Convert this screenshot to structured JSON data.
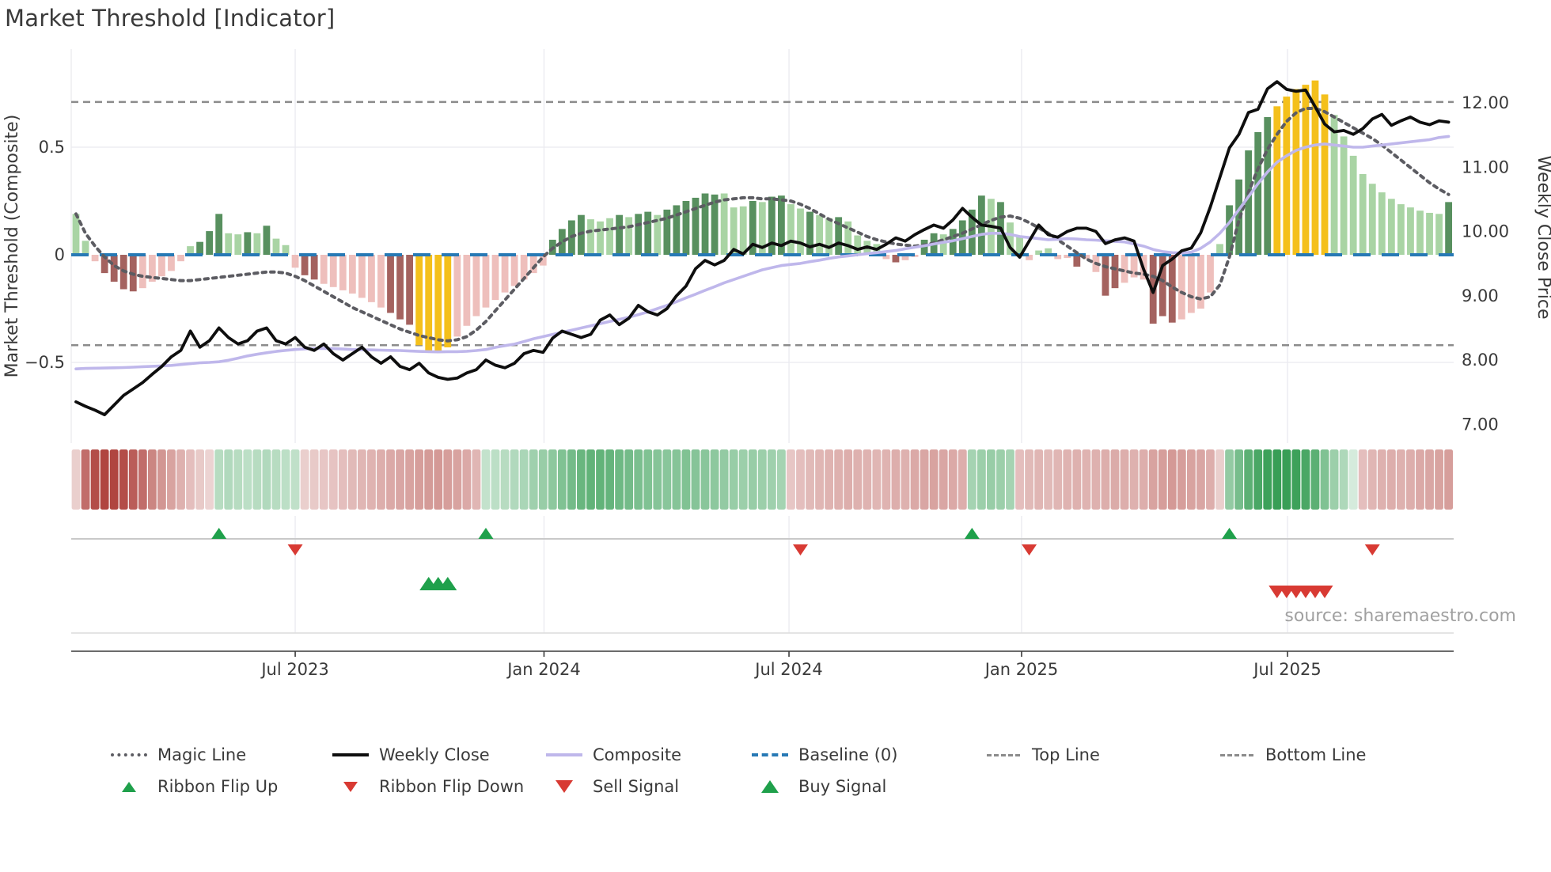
{
  "header": {
    "title": "Market Threshold [Indicator]"
  },
  "footer": {
    "source": "source: sharemaestro.com"
  },
  "axes": {
    "left": {
      "label": "Market Threshold (Composite)"
    },
    "right": {
      "label": "Weekly Close Price"
    }
  },
  "legend": {
    "magic": "Magic Line",
    "weekly_close": "Weekly Close",
    "composite": "Composite",
    "baseline": "Baseline (0)",
    "top": "Top Line",
    "bottom": "Bottom Line",
    "flip_up": "Ribbon Flip Up",
    "flip_down": "Ribbon Flip Down",
    "sell": "Sell Signal",
    "buy": "Buy Signal"
  },
  "colors": {
    "bar_light_green": "#a9d4a4",
    "bar_dark_green": "#58905f",
    "bar_pink": "#eebfbc",
    "bar_dark_red": "#a4625f",
    "bar_yellow": "#f4c01b",
    "magic_line": "#5c5c62",
    "weekly_close": "#0e0e0e",
    "composite_line": "#bfb7eb",
    "baseline": "#2779b5",
    "guide_dashed": "#8b8b8b",
    "grid": "#eaeaef",
    "signal_green": "#1fa04b",
    "signal_red": "#d83a33",
    "ribbon_red_base": "#b04540",
    "ribbon_green_base": "#2f9a4e",
    "axis_text": "#3a3a3a"
  },
  "chart_data": {
    "type": "combo",
    "title": "Market Threshold [Indicator]",
    "n_weeks": 145,
    "x_ticks": [
      {
        "label": "Jul 2023",
        "week": 23
      },
      {
        "label": "Jan 2024",
        "week": 49.1
      },
      {
        "label": "Jul 2024",
        "week": 74.8
      },
      {
        "label": "Jan 2025",
        "week": 99.2
      },
      {
        "label": "Jul 2025",
        "week": 127.1
      }
    ],
    "left_axis": {
      "label": "Market Threshold (Composite)",
      "ticks": [
        {
          "v": 0.5,
          "t": "0.5"
        },
        {
          "v": 0,
          "t": "0"
        },
        {
          "v": -0.5,
          "t": "−0.5"
        }
      ],
      "range": [
        -0.95,
        0.96
      ]
    },
    "right_axis": {
      "label": "Weekly Close Price",
      "ticks": [
        {
          "v": 12,
          "t": "12.00"
        },
        {
          "v": 11,
          "t": "11.00"
        },
        {
          "v": 10,
          "t": "10.00"
        },
        {
          "v": 9,
          "t": "9.00"
        },
        {
          "v": 8,
          "t": "8.00"
        },
        {
          "v": 7,
          "t": "7.00"
        }
      ],
      "range": [
        6.7,
        12.85
      ]
    },
    "reference_lines": {
      "baseline": 0,
      "top_line": 0.71,
      "bottom_line": -0.42
    },
    "bar_color_key": {
      "lg": "light-green",
      "dg": "dark-green",
      "pk": "pink",
      "dr": "dark-red",
      "ye": "yellow-extreme"
    },
    "series": {
      "threshold_bars": {
        "axis": "left",
        "values": [
          0.19,
          0.065,
          -0.03,
          -0.085,
          -0.125,
          -0.16,
          -0.17,
          -0.155,
          -0.125,
          -0.1,
          -0.075,
          -0.03,
          0.04,
          0.06,
          0.11,
          0.19,
          0.1,
          0.095,
          0.105,
          0.1,
          0.135,
          0.075,
          0.045,
          -0.06,
          -0.095,
          -0.115,
          -0.135,
          -0.15,
          -0.165,
          -0.18,
          -0.2,
          -0.22,
          -0.245,
          -0.27,
          -0.3,
          -0.325,
          -0.42,
          -0.445,
          -0.455,
          -0.43,
          -0.38,
          -0.33,
          -0.285,
          -0.245,
          -0.21,
          -0.175,
          -0.145,
          -0.115,
          -0.085,
          -0.05,
          0.07,
          0.12,
          0.16,
          0.185,
          0.165,
          0.155,
          0.17,
          0.185,
          0.175,
          0.19,
          0.2,
          0.185,
          0.21,
          0.23,
          0.25,
          0.265,
          0.285,
          0.28,
          0.285,
          0.22,
          0.225,
          0.25,
          0.245,
          0.27,
          0.275,
          0.235,
          0.215,
          0.2,
          0.185,
          0.17,
          0.175,
          0.155,
          0.09,
          0.065,
          0.05,
          -0.02,
          -0.035,
          -0.025,
          -0.01,
          0.07,
          0.1,
          0.095,
          0.12,
          0.16,
          0.21,
          0.275,
          0.26,
          0.245,
          0.15,
          0.085,
          -0.025,
          0.02,
          0.03,
          -0.02,
          -0.015,
          -0.055,
          -0.02,
          -0.08,
          -0.19,
          -0.155,
          -0.13,
          -0.105,
          -0.115,
          -0.32,
          -0.285,
          -0.315,
          -0.3,
          -0.27,
          -0.25,
          -0.175,
          0.05,
          0.23,
          0.35,
          0.485,
          0.57,
          0.64,
          0.69,
          0.735,
          0.77,
          0.79,
          0.81,
          0.745,
          0.65,
          0.55,
          0.46,
          0.375,
          0.33,
          0.29,
          0.26,
          0.235,
          0.22,
          0.205,
          0.195,
          0.19,
          0.245
        ],
        "colors": [
          "lg",
          "lg",
          "pk",
          "dr",
          "dr",
          "dr",
          "dr",
          "pk",
          "pk",
          "pk",
          "pk",
          "pk",
          "lg",
          "dg",
          "dg",
          "dg",
          "lg",
          "lg",
          "dg",
          "lg",
          "dg",
          "lg",
          "lg",
          "pk",
          "dr",
          "dr",
          "pk",
          "pk",
          "pk",
          "pk",
          "pk",
          "pk",
          "pk",
          "dr",
          "dr",
          "dr",
          "ye",
          "ye",
          "ye",
          "ye",
          "pk",
          "pk",
          "pk",
          "pk",
          "pk",
          "pk",
          "pk",
          "pk",
          "pk",
          "pk",
          "dg",
          "dg",
          "dg",
          "dg",
          "lg",
          "lg",
          "lg",
          "dg",
          "lg",
          "dg",
          "dg",
          "lg",
          "dg",
          "dg",
          "dg",
          "dg",
          "dg",
          "dg",
          "lg",
          "lg",
          "lg",
          "dg",
          "lg",
          "dg",
          "dg",
          "lg",
          "lg",
          "dg",
          "lg",
          "lg",
          "dg",
          "lg",
          "lg",
          "lg",
          "lg",
          "pk",
          "dr",
          "pk",
          "pk",
          "dg",
          "dg",
          "lg",
          "dg",
          "dg",
          "dg",
          "dg",
          "lg",
          "dg",
          "lg",
          "lg",
          "pk",
          "lg",
          "lg",
          "pk",
          "pk",
          "dr",
          "pk",
          "pk",
          "dr",
          "dr",
          "pk",
          "pk",
          "pk",
          "dr",
          "dr",
          "dr",
          "pk",
          "pk",
          "pk",
          "pk",
          "lg",
          "dg",
          "dg",
          "dg",
          "dg",
          "dg",
          "ye",
          "ye",
          "ye",
          "ye",
          "ye",
          "ye",
          "lg",
          "lg",
          "lg",
          "lg",
          "lg",
          "lg",
          "lg",
          "lg",
          "lg",
          "lg",
          "lg",
          "lg",
          "dg"
        ]
      },
      "magic_line": {
        "axis": "left",
        "values": [
          0.19,
          0.1,
          0.04,
          -0.01,
          -0.05,
          -0.075,
          -0.09,
          -0.1,
          -0.105,
          -0.11,
          -0.115,
          -0.12,
          -0.12,
          -0.115,
          -0.11,
          -0.105,
          -0.1,
          -0.095,
          -0.09,
          -0.085,
          -0.08,
          -0.08,
          -0.085,
          -0.1,
          -0.12,
          -0.145,
          -0.17,
          -0.195,
          -0.22,
          -0.245,
          -0.265,
          -0.285,
          -0.305,
          -0.325,
          -0.345,
          -0.36,
          -0.375,
          -0.385,
          -0.395,
          -0.4,
          -0.395,
          -0.38,
          -0.35,
          -0.31,
          -0.26,
          -0.21,
          -0.16,
          -0.11,
          -0.06,
          -0.01,
          0.03,
          0.06,
          0.085,
          0.1,
          0.11,
          0.115,
          0.12,
          0.125,
          0.13,
          0.14,
          0.15,
          0.16,
          0.17,
          0.185,
          0.2,
          0.215,
          0.23,
          0.245,
          0.255,
          0.26,
          0.265,
          0.265,
          0.26,
          0.26,
          0.255,
          0.25,
          0.235,
          0.215,
          0.19,
          0.165,
          0.145,
          0.125,
          0.105,
          0.085,
          0.07,
          0.06,
          0.05,
          0.045,
          0.04,
          0.045,
          0.055,
          0.07,
          0.085,
          0.1,
          0.12,
          0.14,
          0.16,
          0.175,
          0.18,
          0.17,
          0.15,
          0.125,
          0.1,
          0.07,
          0.04,
          0.01,
          -0.02,
          -0.04,
          -0.055,
          -0.065,
          -0.075,
          -0.085,
          -0.09,
          -0.1,
          -0.12,
          -0.15,
          -0.175,
          -0.195,
          -0.205,
          -0.195,
          -0.14,
          -0.01,
          0.16,
          0.29,
          0.4,
          0.49,
          0.56,
          0.62,
          0.66,
          0.68,
          0.68,
          0.665,
          0.64,
          0.615,
          0.59,
          0.565,
          0.54,
          0.51,
          0.475,
          0.44,
          0.405,
          0.37,
          0.335,
          0.305,
          0.28
        ]
      },
      "composite": {
        "axis": "left",
        "values": [
          -0.53,
          -0.528,
          -0.527,
          -0.526,
          -0.525,
          -0.524,
          -0.522,
          -0.52,
          -0.518,
          -0.516,
          -0.514,
          -0.51,
          -0.506,
          -0.502,
          -0.5,
          -0.497,
          -0.49,
          -0.48,
          -0.47,
          -0.462,
          -0.455,
          -0.449,
          -0.444,
          -0.44,
          -0.437,
          -0.436,
          -0.435,
          -0.436,
          -0.438,
          -0.44,
          -0.441,
          -0.442,
          -0.443,
          -0.444,
          -0.445,
          -0.447,
          -0.449,
          -0.45,
          -0.451,
          -0.45,
          -0.45,
          -0.448,
          -0.445,
          -0.44,
          -0.43,
          -0.422,
          -0.415,
          -0.403,
          -0.39,
          -0.38,
          -0.37,
          -0.36,
          -0.35,
          -0.34,
          -0.33,
          -0.32,
          -0.31,
          -0.3,
          -0.29,
          -0.278,
          -0.265,
          -0.25,
          -0.235,
          -0.218,
          -0.2,
          -0.183,
          -0.165,
          -0.148,
          -0.13,
          -0.115,
          -0.1,
          -0.085,
          -0.07,
          -0.06,
          -0.05,
          -0.045,
          -0.04,
          -0.032,
          -0.025,
          -0.017,
          -0.01,
          -0.005,
          0.0,
          0.005,
          0.01,
          0.015,
          0.02,
          0.028,
          0.035,
          0.042,
          0.05,
          0.058,
          0.065,
          0.075,
          0.085,
          0.095,
          0.1,
          0.1,
          0.095,
          0.085,
          0.08,
          0.075,
          0.07,
          0.072,
          0.075,
          0.073,
          0.07,
          0.068,
          0.065,
          0.062,
          0.06,
          0.05,
          0.04,
          0.025,
          0.015,
          0.01,
          0.008,
          0.012,
          0.03,
          0.06,
          0.1,
          0.15,
          0.21,
          0.27,
          0.33,
          0.385,
          0.43,
          0.46,
          0.485,
          0.5,
          0.51,
          0.515,
          0.51,
          0.505,
          0.5,
          0.5,
          0.505,
          0.51,
          0.515,
          0.52,
          0.525,
          0.53,
          0.535,
          0.545,
          0.55
        ]
      },
      "weekly_close": {
        "axis": "right",
        "values": [
          7.35,
          7.28,
          7.22,
          7.15,
          7.3,
          7.45,
          7.55,
          7.65,
          7.78,
          7.9,
          8.05,
          8.15,
          8.45,
          8.2,
          8.3,
          8.5,
          8.35,
          8.25,
          8.3,
          8.45,
          8.5,
          8.3,
          8.25,
          8.35,
          8.2,
          8.15,
          8.25,
          8.1,
          8.0,
          8.1,
          8.2,
          8.05,
          7.95,
          8.05,
          7.9,
          7.85,
          7.95,
          7.8,
          7.73,
          7.7,
          7.72,
          7.8,
          7.85,
          8.0,
          7.92,
          7.88,
          7.95,
          8.1,
          8.15,
          8.12,
          8.34,
          8.45,
          8.4,
          8.35,
          8.4,
          8.62,
          8.7,
          8.55,
          8.65,
          8.85,
          8.75,
          8.7,
          8.8,
          9.0,
          9.15,
          9.42,
          9.55,
          9.48,
          9.55,
          9.72,
          9.65,
          9.8,
          9.75,
          9.82,
          9.78,
          9.85,
          9.82,
          9.76,
          9.8,
          9.75,
          9.82,
          9.78,
          9.72,
          9.76,
          9.72,
          9.8,
          9.9,
          9.85,
          9.95,
          10.03,
          10.1,
          10.05,
          10.18,
          10.36,
          10.22,
          10.1,
          10.08,
          10.05,
          9.75,
          9.6,
          9.85,
          10.1,
          9.95,
          9.91,
          10.0,
          10.05,
          10.05,
          10.0,
          9.81,
          9.87,
          9.9,
          9.85,
          9.41,
          9.05,
          9.47,
          9.57,
          9.7,
          9.74,
          9.98,
          10.38,
          10.84,
          11.3,
          11.51,
          11.85,
          11.9,
          12.22,
          12.33,
          12.21,
          12.18,
          12.2,
          11.94,
          11.67,
          11.55,
          11.57,
          11.51,
          11.6,
          11.75,
          11.82,
          11.65,
          11.72,
          11.78,
          11.7,
          11.66,
          11.72,
          11.7
        ]
      }
    },
    "ribbon": [
      -0.15,
      -0.75,
      -0.95,
      -1.0,
      -1.0,
      -0.95,
      -0.85,
      -0.75,
      -0.6,
      -0.5,
      -0.42,
      -0.33,
      -0.25,
      -0.18,
      -0.12,
      0.25,
      0.28,
      0.25,
      0.22,
      0.25,
      0.28,
      0.25,
      0.22,
      0.2,
      -0.15,
      -0.18,
      -0.2,
      -0.22,
      -0.25,
      -0.28,
      -0.3,
      -0.32,
      -0.35,
      -0.38,
      -0.4,
      -0.42,
      -0.45,
      -0.47,
      -0.48,
      -0.45,
      -0.42,
      -0.38,
      -0.3,
      0.18,
      0.22,
      0.25,
      0.28,
      0.32,
      0.38,
      0.42,
      0.48,
      0.55,
      0.62,
      0.68,
      0.72,
      0.72,
      0.7,
      0.65,
      0.62,
      0.58,
      0.55,
      0.52,
      0.5,
      0.52,
      0.55,
      0.52,
      0.5,
      0.48,
      0.45,
      0.42,
      0.4,
      0.42,
      0.4,
      0.38,
      0.35,
      -0.2,
      -0.25,
      -0.28,
      -0.3,
      -0.32,
      -0.33,
      -0.35,
      -0.33,
      -0.32,
      -0.3,
      -0.32,
      -0.35,
      -0.33,
      -0.38,
      -0.4,
      -0.42,
      -0.4,
      -0.38,
      -0.35,
      0.35,
      0.4,
      0.42,
      0.4,
      0.35,
      -0.25,
      -0.28,
      -0.3,
      -0.28,
      -0.3,
      -0.32,
      -0.33,
      -0.32,
      -0.33,
      -0.35,
      -0.37,
      -0.35,
      -0.33,
      -0.35,
      -0.42,
      -0.45,
      -0.48,
      -0.45,
      -0.42,
      -0.4,
      -0.35,
      -0.15,
      0.45,
      0.6,
      0.75,
      0.85,
      0.92,
      0.95,
      0.95,
      0.92,
      0.85,
      0.75,
      0.55,
      0.4,
      0.3,
      0.08,
      -0.25,
      -0.3,
      -0.33,
      -0.35,
      -0.33,
      -0.35,
      -0.38,
      -0.4,
      -0.42,
      -0.45
    ],
    "signals": {
      "flip_up_weeks": [
        15,
        43,
        94,
        121
      ],
      "flip_down_weeks": [
        23,
        76,
        100,
        136
      ],
      "buy_weeks": [
        37,
        38,
        39
      ],
      "sell_weeks": [
        126,
        127,
        128,
        129,
        130,
        131
      ]
    }
  }
}
